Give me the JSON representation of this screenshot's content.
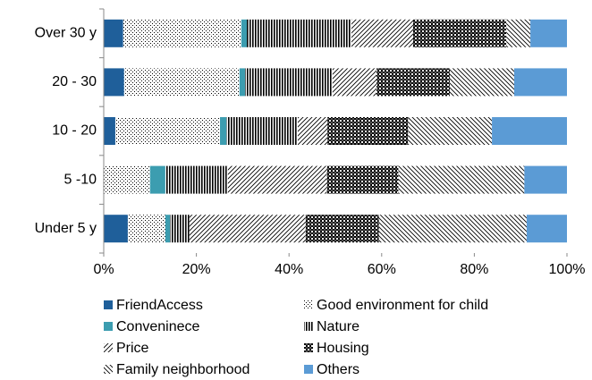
{
  "chart_data": {
    "type": "stacked_barh",
    "categories": [
      "Over 30 y",
      "20 - 30",
      "10 - 20",
      "5 -10",
      "Under 5 y"
    ],
    "series": [
      {
        "name": "FriendAccess",
        "color": "#1f5f9a",
        "pattern": "solid",
        "values": [
          4.2,
          4.4,
          2.5,
          0,
          5.2
        ]
      },
      {
        "name": "Good environment for child",
        "color": "#000000",
        "pattern": "dots",
        "values": [
          25.5,
          24.9,
          22.6,
          10.0,
          8.1
        ]
      },
      {
        "name": "Conveninece",
        "color": "#3c9db0",
        "pattern": "solid",
        "values": [
          1.2,
          1.2,
          1.4,
          3.3,
          1.0
        ]
      },
      {
        "name": "Nature",
        "color": "#000000",
        "pattern": "vlines",
        "values": [
          22.6,
          18.9,
          15.4,
          13.5,
          4.2
        ]
      },
      {
        "name": "Price",
        "color": "#000000",
        "pattern": "diag",
        "values": [
          13.3,
          9.5,
          6.4,
          21.4,
          25.1
        ]
      },
      {
        "name": "Housing",
        "color": "#000000",
        "pattern": "checker",
        "values": [
          20.1,
          15.8,
          17.4,
          15.4,
          15.8
        ]
      },
      {
        "name": "Family neighborhood",
        "color": "#000000",
        "pattern": "diag2",
        "values": [
          5.2,
          13.9,
          18.1,
          27.2,
          31.9
        ]
      },
      {
        "name": "Others",
        "color": "#5b9bd5",
        "pattern": "solid",
        "values": [
          7.9,
          11.4,
          16.2,
          9.2,
          8.7
        ]
      }
    ],
    "xlim": [
      0,
      100
    ],
    "xticks": [
      {
        "value": 0,
        "label": "0%"
      },
      {
        "value": 20,
        "label": "20%"
      },
      {
        "value": 40,
        "label": "40%"
      },
      {
        "value": 60,
        "label": "60%"
      },
      {
        "value": 80,
        "label": "80%"
      },
      {
        "value": 100,
        "label": "100%"
      }
    ],
    "legend": "bottom"
  }
}
